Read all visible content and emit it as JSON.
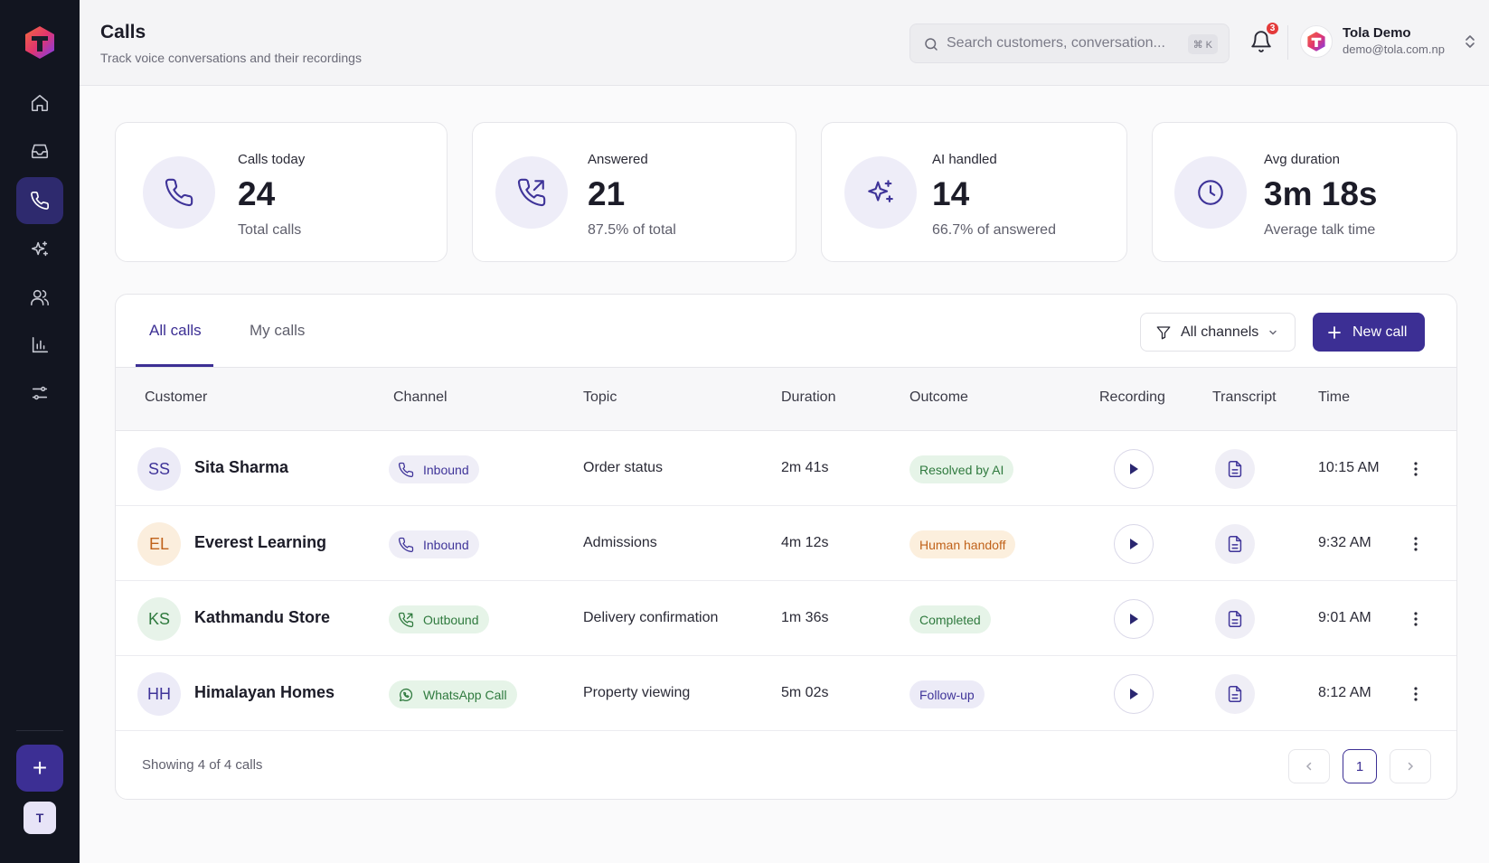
{
  "header": {
    "title": "Calls",
    "subtitle": "Track voice conversations and their recordings",
    "search_placeholder": "Search customers, conversation...",
    "search_shortcut": "⌘ K",
    "notification_count": "3",
    "user_name": "Tola Demo",
    "user_email": "demo@tola.com.np"
  },
  "sidebar": {
    "items": [
      {
        "icon": "home-icon"
      },
      {
        "icon": "inbox-icon"
      },
      {
        "icon": "phone-icon",
        "active": true
      },
      {
        "icon": "sparkles-icon"
      },
      {
        "icon": "users-icon"
      },
      {
        "icon": "bar-chart-icon"
      },
      {
        "icon": "sliders-icon"
      }
    ],
    "avatar_initial": "T",
    "add_label": "+"
  },
  "stats": [
    {
      "label": "Calls today",
      "value": "24",
      "sub": "Total calls",
      "icon": "phone-icon"
    },
    {
      "label": "Answered",
      "value": "21",
      "sub": "87.5% of total",
      "icon": "phone-outgoing-icon"
    },
    {
      "label": "AI handled",
      "value": "14",
      "sub": "66.7% of answered",
      "icon": "sparkles-icon"
    },
    {
      "label": "Avg duration",
      "value": "3m 18s",
      "sub": "Average talk time",
      "icon": "clock-icon"
    }
  ],
  "tabs": [
    "All calls",
    "My calls"
  ],
  "filter_label": "All channels",
  "new_call_label": "New call",
  "columns": [
    "Customer",
    "Channel",
    "Topic",
    "Duration",
    "Outcome",
    "Recording",
    "Transcript",
    "Time"
  ],
  "rows": [
    {
      "initials": "SS",
      "name": "Sita Sharma",
      "channel": "Inbound",
      "topic": "Order status",
      "duration": "2m 41s",
      "outcome": "Resolved by AI",
      "time": "10:15 AM"
    },
    {
      "initials": "EL",
      "name": "Everest Learning",
      "channel": "Inbound",
      "topic": "Admissions",
      "duration": "4m 12s",
      "outcome": "Human handoff",
      "time": "9:32 AM"
    },
    {
      "initials": "KS",
      "name": "Kathmandu Store",
      "channel": "Outbound",
      "topic": "Delivery confirmation",
      "duration": "1m 36s",
      "outcome": "Completed",
      "time": "9:01 AM"
    },
    {
      "initials": "HH",
      "name": "Himalayan Homes",
      "channel": "WhatsApp Call",
      "topic": "Property viewing",
      "duration": "5m 02s",
      "outcome": "Follow-up",
      "time": "8:12 AM"
    }
  ],
  "footer": {
    "showing": "Showing 4 of 4 calls",
    "current_page": "1"
  },
  "colors": {
    "accent": "#3c2f94",
    "sidebar_bg": "#121520",
    "resolved": "#2f7a3e",
    "handoff": "#c0621a",
    "followup": "#3f3499"
  }
}
